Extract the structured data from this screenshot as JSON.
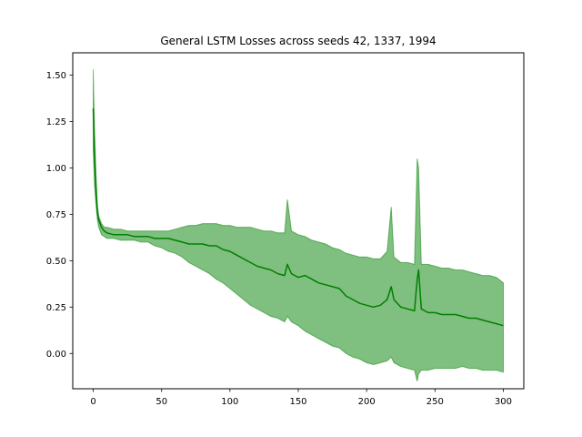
{
  "chart_data": {
    "type": "line",
    "title": "General LSTM Losses across seeds 42, 1337, 1994",
    "xlabel": "",
    "ylabel": "",
    "xlim": [
      -15,
      315
    ],
    "ylim": [
      -0.19,
      1.62
    ],
    "xticks": [
      0,
      50,
      100,
      150,
      200,
      250,
      300
    ],
    "yticks": [
      0.0,
      0.25,
      0.5,
      0.75,
      1.0,
      1.25,
      1.5
    ],
    "xtick_labels": [
      "0",
      "50",
      "100",
      "150",
      "200",
      "250",
      "300"
    ],
    "ytick_labels": [
      "0.00",
      "0.25",
      "0.50",
      "0.75",
      "1.00",
      "1.25",
      "1.50"
    ],
    "grid": false,
    "legend": "none",
    "colors": {
      "line": "#008000",
      "band": "#008000"
    },
    "series": [
      {
        "x": [
          0,
          1,
          2,
          3,
          4,
          5,
          6,
          8,
          10,
          15,
          20,
          25,
          30,
          35,
          40,
          45,
          50,
          55,
          60,
          65,
          70,
          75,
          80,
          85,
          90,
          95,
          100,
          105,
          110,
          115,
          120,
          125,
          130,
          135,
          140,
          142,
          145,
          150,
          155,
          160,
          165,
          170,
          175,
          180,
          185,
          190,
          195,
          200,
          205,
          210,
          215,
          218,
          220,
          225,
          230,
          235,
          237,
          238,
          240,
          245,
          250,
          255,
          260,
          265,
          270,
          275,
          280,
          285,
          290,
          295,
          300
        ],
        "y": [
          1.32,
          1.05,
          0.88,
          0.76,
          0.72,
          0.7,
          0.68,
          0.66,
          0.65,
          0.64,
          0.64,
          0.64,
          0.63,
          0.63,
          0.63,
          0.62,
          0.62,
          0.62,
          0.61,
          0.6,
          0.59,
          0.59,
          0.59,
          0.58,
          0.58,
          0.56,
          0.55,
          0.53,
          0.51,
          0.49,
          0.47,
          0.46,
          0.45,
          0.43,
          0.42,
          0.48,
          0.43,
          0.41,
          0.42,
          0.4,
          0.38,
          0.37,
          0.36,
          0.35,
          0.31,
          0.29,
          0.27,
          0.26,
          0.25,
          0.26,
          0.29,
          0.36,
          0.29,
          0.25,
          0.24,
          0.23,
          0.4,
          0.45,
          0.24,
          0.22,
          0.22,
          0.21,
          0.21,
          0.21,
          0.2,
          0.19,
          0.19,
          0.18,
          0.17,
          0.16,
          0.15
        ],
        "upper": [
          1.53,
          1.2,
          0.96,
          0.8,
          0.74,
          0.72,
          0.7,
          0.68,
          0.68,
          0.67,
          0.67,
          0.66,
          0.66,
          0.66,
          0.66,
          0.66,
          0.66,
          0.66,
          0.67,
          0.68,
          0.69,
          0.69,
          0.7,
          0.7,
          0.7,
          0.69,
          0.69,
          0.68,
          0.68,
          0.68,
          0.67,
          0.66,
          0.66,
          0.65,
          0.65,
          0.83,
          0.66,
          0.64,
          0.63,
          0.61,
          0.6,
          0.59,
          0.57,
          0.56,
          0.54,
          0.53,
          0.52,
          0.52,
          0.51,
          0.51,
          0.55,
          0.79,
          0.52,
          0.49,
          0.49,
          0.48,
          1.05,
          1.0,
          0.48,
          0.48,
          0.47,
          0.46,
          0.46,
          0.45,
          0.45,
          0.44,
          0.43,
          0.42,
          0.42,
          0.41,
          0.38
        ],
        "lower": [
          1.1,
          0.9,
          0.8,
          0.72,
          0.68,
          0.66,
          0.64,
          0.63,
          0.62,
          0.62,
          0.61,
          0.61,
          0.61,
          0.6,
          0.6,
          0.58,
          0.57,
          0.55,
          0.54,
          0.52,
          0.49,
          0.47,
          0.45,
          0.43,
          0.4,
          0.38,
          0.35,
          0.32,
          0.29,
          0.26,
          0.24,
          0.22,
          0.2,
          0.19,
          0.17,
          0.2,
          0.17,
          0.15,
          0.12,
          0.1,
          0.08,
          0.06,
          0.04,
          0.03,
          0.0,
          -0.02,
          -0.03,
          -0.05,
          -0.06,
          -0.05,
          -0.04,
          -0.02,
          -0.05,
          -0.07,
          -0.08,
          -0.09,
          -0.15,
          -0.11,
          -0.09,
          -0.09,
          -0.08,
          -0.08,
          -0.08,
          -0.08,
          -0.07,
          -0.08,
          -0.08,
          -0.09,
          -0.09,
          -0.09,
          -0.1
        ]
      }
    ]
  }
}
